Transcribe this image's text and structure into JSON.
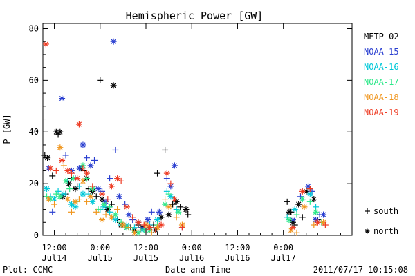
{
  "chart_data": {
    "type": "scatter",
    "title": "Hemispheric Power [GW]",
    "ylabel": "P [GW]",
    "xlabel": "Date and Time",
    "ylim": [
      0,
      82
    ],
    "yticks": [
      0,
      20,
      40,
      60,
      80
    ],
    "x_unit": "hours since 2011-07-14 00:00",
    "xlim": [
      9,
      90
    ],
    "xticks": [
      {
        "x": 12,
        "top": "12:00",
        "bottom": "Jul14"
      },
      {
        "x": 24,
        "top": "0:00",
        "bottom": "Jul15"
      },
      {
        "x": 36,
        "top": "12:00",
        "bottom": "Jul15"
      },
      {
        "x": 48,
        "top": "0:00",
        "bottom": "Jul16"
      },
      {
        "x": 60,
        "top": "12:00",
        "bottom": "Jul16"
      },
      {
        "x": 72,
        "top": "0:00",
        "bottom": "Jul17"
      }
    ],
    "grid": false,
    "legend_position": "right",
    "marker_key": [
      {
        "symbol": "+",
        "label": "south"
      },
      {
        "symbol": "*",
        "label": "north"
      }
    ],
    "series": [
      {
        "name": "METP-02",
        "color": "#000000",
        "points": [
          [
            9.5,
            31,
            "+"
          ],
          [
            10.2,
            30,
            "*"
          ],
          [
            11.5,
            23,
            "+"
          ],
          [
            12.5,
            40,
            "*"
          ],
          [
            13.0,
            39,
            "+"
          ],
          [
            13.5,
            40,
            "*"
          ],
          [
            14.2,
            15,
            "*"
          ],
          [
            15.0,
            16,
            "+"
          ],
          [
            15.8,
            20,
            "*"
          ],
          [
            16.5,
            22,
            "+"
          ],
          [
            17.5,
            18,
            "*"
          ],
          [
            18.0,
            19,
            "+"
          ],
          [
            19.0,
            26,
            "*"
          ],
          [
            19.8,
            25,
            "+"
          ],
          [
            20.5,
            22,
            "*"
          ],
          [
            21.0,
            18,
            "+"
          ],
          [
            22.0,
            17,
            "*"
          ],
          [
            23.0,
            15,
            "+"
          ],
          [
            24.0,
            60,
            "+"
          ],
          [
            24.5,
            14,
            "*"
          ],
          [
            25.0,
            13,
            "+"
          ],
          [
            26.0,
            10,
            "*"
          ],
          [
            27.0,
            12,
            "+"
          ],
          [
            27.5,
            58,
            "*"
          ],
          [
            28.5,
            6,
            "+"
          ],
          [
            29.5,
            4,
            "*"
          ],
          [
            30.0,
            4,
            "+"
          ],
          [
            31.0,
            3,
            "*"
          ],
          [
            32.0,
            3,
            "+"
          ],
          [
            33.0,
            2,
            "*"
          ],
          [
            34.0,
            4,
            "+"
          ],
          [
            35.0,
            3,
            "*"
          ],
          [
            36.0,
            2,
            "+"
          ],
          [
            37.0,
            3,
            "*"
          ],
          [
            38.0,
            4,
            "+"
          ],
          [
            38.5,
            2,
            "*"
          ],
          [
            39.0,
            24,
            "+"
          ],
          [
            40.0,
            7,
            "*"
          ],
          [
            41.0,
            33,
            "+"
          ],
          [
            42.0,
            8,
            "*"
          ],
          [
            43.0,
            12,
            "+"
          ],
          [
            44.0,
            13,
            "*"
          ],
          [
            45.0,
            11,
            "+"
          ],
          [
            46.5,
            10,
            "*"
          ],
          [
            47.0,
            8,
            "+"
          ],
          [
            73.0,
            13,
            "+"
          ],
          [
            73.5,
            9,
            "*"
          ],
          [
            74.0,
            9,
            "+"
          ],
          [
            74.5,
            5,
            "*"
          ],
          [
            75.0,
            4,
            "+"
          ],
          [
            76.0,
            12,
            "*"
          ],
          [
            77.0,
            7,
            "+"
          ],
          [
            78.0,
            17,
            "*"
          ],
          [
            79.0,
            18,
            "+"
          ],
          [
            80.0,
            14,
            "*"
          ],
          [
            81.0,
            6,
            "+"
          ]
        ]
      },
      {
        "name": "NOAA-15",
        "color": "#2a3fd0",
        "points": [
          [
            10.5,
            26,
            "*"
          ],
          [
            11.5,
            9,
            "+"
          ],
          [
            14.0,
            53,
            "*"
          ],
          [
            15.0,
            31,
            "+"
          ],
          [
            16.5,
            25,
            "*"
          ],
          [
            17.5,
            22,
            "+"
          ],
          [
            18.5,
            26,
            "*"
          ],
          [
            19.5,
            35,
            "*"
          ],
          [
            20.5,
            30,
            "+"
          ],
          [
            21.5,
            27,
            "*"
          ],
          [
            22.5,
            29,
            "+"
          ],
          [
            23.5,
            18,
            "*"
          ],
          [
            24.5,
            17,
            "+"
          ],
          [
            25.5,
            13,
            "*"
          ],
          [
            26.5,
            22,
            "+"
          ],
          [
            27.5,
            75,
            "*"
          ],
          [
            28.0,
            33,
            "+"
          ],
          [
            29.0,
            15,
            "*"
          ],
          [
            30.5,
            12,
            "+"
          ],
          [
            31.5,
            8,
            "*"
          ],
          [
            32.5,
            6,
            "+"
          ],
          [
            34.0,
            5,
            "*"
          ],
          [
            35.0,
            3,
            "+"
          ],
          [
            36.5,
            6,
            "*"
          ],
          [
            37.5,
            9,
            "+"
          ],
          [
            39.5,
            9,
            "*"
          ],
          [
            41.5,
            22,
            "+"
          ],
          [
            42.5,
            19,
            "*"
          ],
          [
            43.5,
            27,
            "*"
          ],
          [
            45.5,
            3,
            "+"
          ],
          [
            74.5,
            6,
            "*"
          ],
          [
            76.5,
            15,
            "+"
          ],
          [
            78.5,
            19,
            "*"
          ],
          [
            79.5,
            17,
            "+"
          ],
          [
            80.5,
            6,
            "*"
          ],
          [
            81.5,
            8,
            "+"
          ],
          [
            82.5,
            8,
            "*"
          ]
        ]
      },
      {
        "name": "NOAA-16",
        "color": "#00c8d8",
        "points": [
          [
            10.0,
            18,
            "*"
          ],
          [
            11.0,
            15,
            "+"
          ],
          [
            12.0,
            14,
            "*"
          ],
          [
            13.0,
            17,
            "+"
          ],
          [
            14.5,
            16,
            "*"
          ],
          [
            15.5,
            21,
            "+"
          ],
          [
            16.5,
            12,
            "*"
          ],
          [
            17.5,
            11,
            "*"
          ],
          [
            18.5,
            19,
            "+"
          ],
          [
            19.5,
            16,
            "*"
          ],
          [
            21.0,
            16,
            "+"
          ],
          [
            22.0,
            13,
            "*"
          ],
          [
            24.0,
            10,
            "+"
          ],
          [
            25.0,
            11,
            "*"
          ],
          [
            26.5,
            9,
            "+"
          ],
          [
            28.0,
            6,
            "*"
          ],
          [
            29.5,
            4,
            "+"
          ],
          [
            31.0,
            4,
            "*"
          ],
          [
            33.0,
            3,
            "+"
          ],
          [
            35.0,
            2,
            "*"
          ],
          [
            37.0,
            4,
            "+"
          ],
          [
            39.0,
            6,
            "*"
          ],
          [
            41.5,
            17,
            "+"
          ],
          [
            42.5,
            15,
            "*"
          ],
          [
            44.0,
            10,
            "+"
          ],
          [
            73.0,
            7,
            "+"
          ],
          [
            75.0,
            10,
            "*"
          ],
          [
            77.0,
            14,
            "+"
          ],
          [
            79.0,
            16,
            "*"
          ],
          [
            80.5,
            11,
            "+"
          ]
        ]
      },
      {
        "name": "NOAA-17",
        "color": "#2ee88a",
        "points": [
          [
            10.0,
            15,
            "+"
          ],
          [
            11.0,
            14,
            "*"
          ],
          [
            12.5,
            16,
            "+"
          ],
          [
            13.5,
            15,
            "*"
          ],
          [
            15.0,
            21,
            "*"
          ],
          [
            16.0,
            18,
            "+"
          ],
          [
            17.0,
            22,
            "*"
          ],
          [
            18.0,
            13,
            "+"
          ],
          [
            19.5,
            27,
            "*"
          ],
          [
            20.5,
            22,
            "+"
          ],
          [
            22.0,
            18,
            "*"
          ],
          [
            23.5,
            10,
            "+"
          ],
          [
            25.0,
            12,
            "*"
          ],
          [
            26.5,
            11,
            "+"
          ],
          [
            28.0,
            8,
            "*"
          ],
          [
            29.5,
            5,
            "+"
          ],
          [
            31.0,
            3,
            "*"
          ],
          [
            32.5,
            2,
            "+"
          ],
          [
            34.0,
            1,
            "*"
          ],
          [
            35.5,
            2,
            "+"
          ],
          [
            37.0,
            2,
            "*"
          ],
          [
            39.0,
            4,
            "+"
          ],
          [
            41.0,
            12,
            "*"
          ],
          [
            42.0,
            16,
            "+"
          ],
          [
            44.5,
            9,
            "*"
          ],
          [
            73.5,
            6,
            "*"
          ],
          [
            75.5,
            8,
            "+"
          ],
          [
            77.0,
            14,
            "*"
          ],
          [
            79.0,
            13,
            "+"
          ],
          [
            80.5,
            9,
            "*"
          ],
          [
            82.0,
            5,
            "+"
          ]
        ]
      },
      {
        "name": "NOAA-18",
        "color": "#f0961e",
        "points": [
          [
            10.5,
            14,
            "*"
          ],
          [
            12.0,
            12,
            "+"
          ],
          [
            13.5,
            34,
            "*"
          ],
          [
            14.5,
            27,
            "+"
          ],
          [
            15.5,
            14,
            "*"
          ],
          [
            16.5,
            9,
            "+"
          ],
          [
            17.5,
            13,
            "*"
          ],
          [
            18.5,
            14,
            "+"
          ],
          [
            19.5,
            21,
            "*"
          ],
          [
            20.5,
            13,
            "+"
          ],
          [
            21.5,
            15,
            "*"
          ],
          [
            23.0,
            9,
            "+"
          ],
          [
            24.5,
            6,
            "*"
          ],
          [
            25.5,
            8,
            "+"
          ],
          [
            27.0,
            7,
            "*"
          ],
          [
            28.5,
            10,
            "+"
          ],
          [
            30.0,
            4,
            "*"
          ],
          [
            31.5,
            3,
            "+"
          ],
          [
            33.0,
            1,
            "*"
          ],
          [
            34.5,
            2,
            "+"
          ],
          [
            36.0,
            4,
            "*"
          ],
          [
            37.5,
            1,
            "+"
          ],
          [
            39.0,
            3,
            "*"
          ],
          [
            41.0,
            14,
            "+"
          ],
          [
            42.0,
            11,
            "*"
          ],
          [
            44.0,
            7,
            "+"
          ],
          [
            45.5,
            4,
            "*"
          ],
          [
            74.0,
            2,
            "*"
          ],
          [
            75.5,
            1,
            "+"
          ],
          [
            77.5,
            11,
            "*"
          ],
          [
            80.0,
            4,
            "+"
          ],
          [
            82.5,
            5,
            "*"
          ]
        ]
      },
      {
        "name": "NOAA-19",
        "color": "#ee3a22",
        "points": [
          [
            9.8,
            74,
            "*"
          ],
          [
            11.0,
            26,
            "*"
          ],
          [
            12.5,
            25,
            "+"
          ],
          [
            14.0,
            29,
            "*"
          ],
          [
            15.5,
            25,
            "*"
          ],
          [
            16.5,
            24,
            "+"
          ],
          [
            18.0,
            22,
            "*"
          ],
          [
            18.5,
            43,
            "*"
          ],
          [
            19.5,
            26,
            "+"
          ],
          [
            20.5,
            24,
            "*"
          ],
          [
            22.0,
            19,
            "+"
          ],
          [
            24.5,
            16,
            "*"
          ],
          [
            26.0,
            14,
            "+"
          ],
          [
            27.0,
            19,
            "*"
          ],
          [
            28.5,
            22,
            "*"
          ],
          [
            29.5,
            21,
            "+"
          ],
          [
            31.0,
            11,
            "*"
          ],
          [
            32.5,
            7,
            "+"
          ],
          [
            34.0,
            5,
            "*"
          ],
          [
            35.5,
            4,
            "+"
          ],
          [
            37.0,
            3,
            "*"
          ],
          [
            38.5,
            2,
            "+"
          ],
          [
            40.0,
            4,
            "*"
          ],
          [
            41.5,
            24,
            "*"
          ],
          [
            42.5,
            20,
            "+"
          ],
          [
            43.5,
            14,
            "*"
          ],
          [
            45.5,
            3,
            "+"
          ],
          [
            74.5,
            3,
            "*"
          ],
          [
            77.0,
            17,
            "*"
          ],
          [
            79.0,
            18,
            "+"
          ],
          [
            81.0,
            5,
            "*"
          ],
          [
            83.0,
            4,
            "+"
          ]
        ]
      }
    ]
  },
  "footer": {
    "plot_credit": "Plot: CCMC",
    "timestamp": "2011/07/17 10:15:08"
  }
}
